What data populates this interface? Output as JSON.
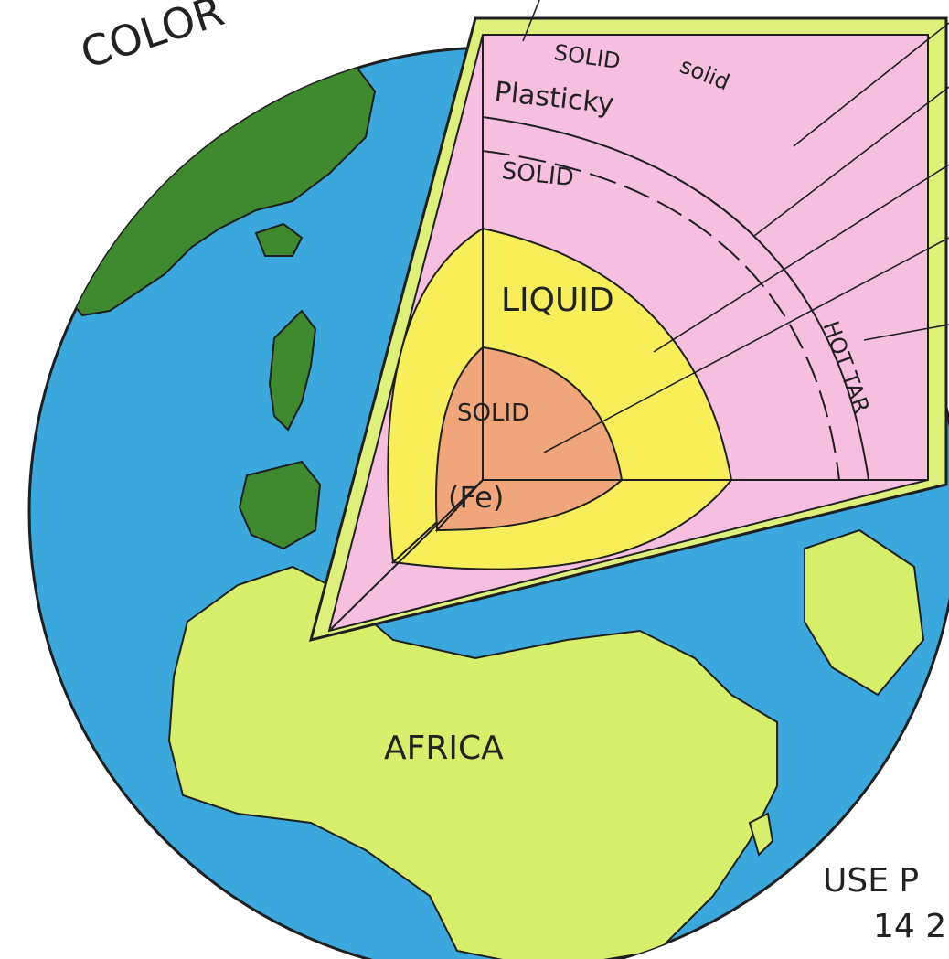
{
  "header": {
    "partial_label": "COLOR"
  },
  "labels": {
    "crust_solid": "SOLID",
    "crust_solid_2": "solid",
    "upper_mantle": "Plasticky",
    "lower_mantle": "SOLID",
    "outer_core": "LIQUID",
    "inner_core": "SOLID",
    "inner_core_symbol": "(Fe)",
    "hot_tar": "HOT TAR",
    "continent": "AFRICA"
  },
  "note": {
    "line1": "USE P",
    "line2": "14 2"
  },
  "colors": {
    "ocean": "#3aa8dc",
    "land_green": "#3f8a2e",
    "land_africa": "#d7ee6a",
    "crust": "#dff07a",
    "mantle": "#f6bfe0",
    "outer_core": "#f7ee5a",
    "inner_core": "#f1a57a",
    "outline": "#1f1f1f"
  }
}
